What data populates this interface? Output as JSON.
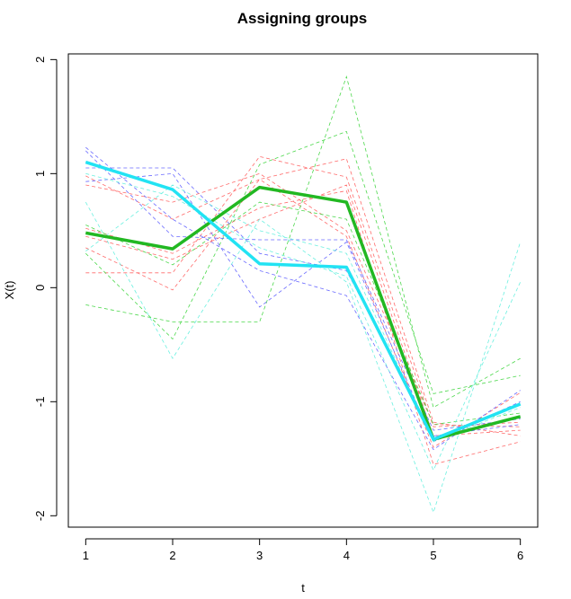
{
  "chart_data": {
    "type": "line",
    "title": "Assigning groups",
    "xlabel": "t",
    "ylabel": "X(t)",
    "x": [
      1,
      2,
      3,
      4,
      5,
      6
    ],
    "xlim": [
      0.8,
      6.2
    ],
    "ylim": [
      -2.1,
      2.05
    ],
    "xticks": [
      "1",
      "2",
      "3",
      "4",
      "5",
      "6"
    ],
    "yticks": [
      "-2",
      "-1",
      "0",
      "1",
      "2"
    ],
    "grid": false,
    "background_curves": [
      {
        "group": "red",
        "color": "#ff6b6b",
        "values": [
          0.35,
          -0.02,
          0.95,
          1.13,
          -1.18,
          -1.3
        ]
      },
      {
        "group": "red",
        "color": "#ff6b6b",
        "values": [
          0.13,
          0.13,
          1.15,
          0.97,
          -1.22,
          -1.18
        ]
      },
      {
        "group": "red",
        "color": "#ff6b6b",
        "values": [
          0.52,
          0.3,
          0.7,
          0.85,
          -1.55,
          -1.35
        ]
      },
      {
        "group": "red",
        "color": "#ff6b6b",
        "values": [
          0.9,
          0.75,
          1.0,
          0.5,
          -1.2,
          -1.22
        ]
      },
      {
        "group": "red",
        "color": "#ff6b6b",
        "values": [
          0.45,
          0.25,
          0.6,
          0.9,
          -1.3,
          -1.25
        ]
      },
      {
        "group": "red",
        "color": "#ff6b6b",
        "values": [
          0.98,
          0.6,
          0.95,
          0.45,
          -1.4,
          -0.92
        ]
      },
      {
        "group": "green",
        "color": "#4cd84c",
        "values": [
          -0.15,
          -0.3,
          -0.3,
          1.85,
          -1.05,
          -0.62
        ]
      },
      {
        "group": "green",
        "color": "#4cd84c",
        "values": [
          0.3,
          -0.45,
          1.08,
          1.37,
          -0.93,
          -0.77
        ]
      },
      {
        "group": "green",
        "color": "#4cd84c",
        "values": [
          0.55,
          0.2,
          0.75,
          0.6,
          -1.2,
          -1.1
        ]
      },
      {
        "group": "blue",
        "color": "#6b6bff",
        "values": [
          1.23,
          0.6,
          0.15,
          -0.07,
          -1.42,
          -0.9
        ]
      },
      {
        "group": "blue",
        "color": "#6b6bff",
        "values": [
          1.05,
          1.05,
          0.3,
          0.15,
          -1.3,
          -1.2
        ]
      },
      {
        "group": "blue",
        "color": "#6b6bff",
        "values": [
          0.93,
          1.0,
          -0.17,
          0.4,
          -1.35,
          -1.0
        ]
      },
      {
        "group": "blue",
        "color": "#6b6bff",
        "values": [
          1.2,
          0.45,
          0.42,
          0.42,
          -1.25,
          -1.15
        ]
      },
      {
        "group": "cyan",
        "color": "#6cf0e0",
        "values": [
          0.75,
          -0.62,
          0.6,
          0.05,
          -1.97,
          0.4
        ]
      },
      {
        "group": "cyan",
        "color": "#6cf0e0",
        "values": [
          1.0,
          0.8,
          0.35,
          0.1,
          -1.6,
          0.05
        ]
      },
      {
        "group": "cyan",
        "color": "#6cf0e0",
        "values": [
          0.32,
          0.9,
          0.5,
          0.3,
          -1.35,
          -1.05
        ]
      }
    ],
    "series": [
      {
        "color": "#22b822",
        "values": [
          0.48,
          0.34,
          0.88,
          0.75,
          -1.33,
          -1.13
        ]
      },
      {
        "color": "#22e3f3",
        "values": [
          1.1,
          0.86,
          0.21,
          0.18,
          -1.33,
          -1.02
        ]
      }
    ]
  }
}
